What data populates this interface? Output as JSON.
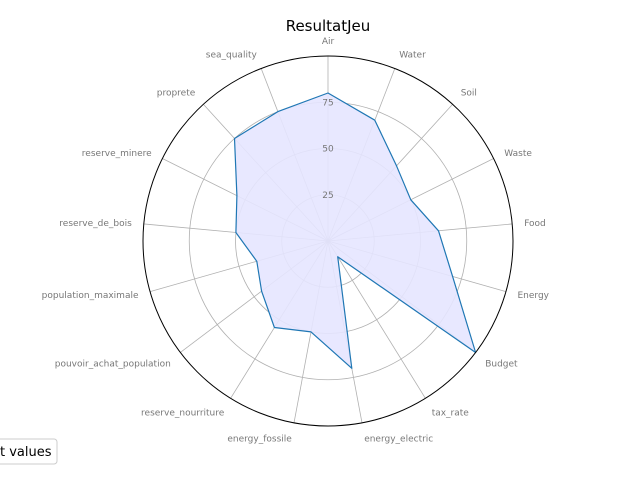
{
  "chart_data": {
    "type": "radar",
    "title": "ResultatJeu",
    "categories": [
      "Air",
      "Water",
      "Soil",
      "Waste",
      "Food",
      "Energy",
      "Budget",
      "tax_rate",
      "energy_electric",
      "energy_fossile",
      "reserve_nourriture",
      "pouvoir_achat_population",
      "population_maximale",
      "reserve_de_bois",
      "reserve_minere",
      "proprete",
      "sea_quality"
    ],
    "series": [
      {
        "values": [
          80,
          70,
          55,
          50,
          60,
          70,
          100,
          10,
          70,
          50,
          55,
          45,
          40,
          50,
          55,
          75,
          75
        ]
      }
    ],
    "rlim": [
      0,
      100
    ],
    "rticks": [
      25,
      50,
      75
    ],
    "rtick_labels": [
      "25",
      "50",
      "75"
    ],
    "grid": true,
    "legend": {
      "placement": "bottom-left",
      "label": "t values"
    },
    "colors": {
      "line": "#1f77b4",
      "fill": "#e6e6ff",
      "grid": "#b0b0b0",
      "frame": "#000000"
    }
  }
}
